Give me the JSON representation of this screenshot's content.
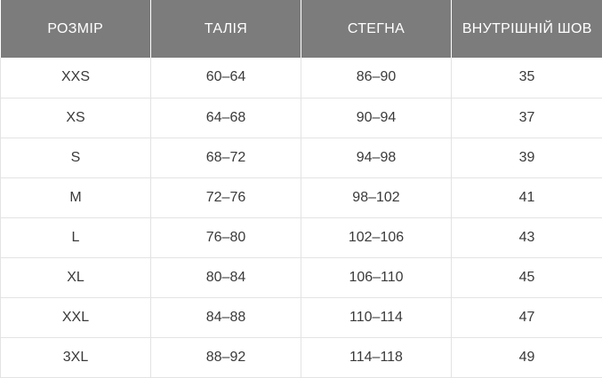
{
  "table": {
    "headers": [
      "РОЗМІР",
      "ТАЛІЯ",
      "СТЕГНА",
      "ВНУТРІШНІЙ ШОВ"
    ],
    "rows": [
      [
        "XXS",
        "60–64",
        "86–90",
        "35"
      ],
      [
        "XS",
        "64–68",
        "90–94",
        "37"
      ],
      [
        "S",
        "68–72",
        "94–98",
        "39"
      ],
      [
        "M",
        "72–76",
        "98–102",
        "41"
      ],
      [
        "L",
        "76–80",
        "102–106",
        "43"
      ],
      [
        "XL",
        "80–84",
        "106–110",
        "45"
      ],
      [
        "XXL",
        "84–88",
        "110–114",
        "47"
      ],
      [
        "3XL",
        "88–92",
        "114–118",
        "49"
      ]
    ]
  }
}
